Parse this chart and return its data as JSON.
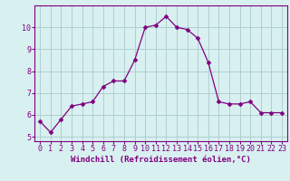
{
  "x": [
    0,
    1,
    2,
    3,
    4,
    5,
    6,
    7,
    8,
    9,
    10,
    11,
    12,
    13,
    14,
    15,
    16,
    17,
    18,
    19,
    20,
    21,
    22,
    23
  ],
  "y": [
    5.7,
    5.2,
    5.8,
    6.4,
    6.5,
    6.6,
    7.3,
    7.55,
    7.55,
    8.5,
    10.0,
    10.1,
    10.5,
    10.0,
    9.9,
    9.5,
    8.4,
    6.6,
    6.5,
    6.5,
    6.6,
    6.1,
    6.1,
    6.1
  ],
  "line_color": "#800080",
  "marker": "D",
  "marker_size": 2.5,
  "bg_color": "#d8f0f0",
  "grid_color": "#b0cece",
  "axis_color": "#800080",
  "xlabel": "Windchill (Refroidissement éolien,°C)",
  "ylim": [
    4.8,
    11.0
  ],
  "xlim": [
    -0.5,
    23.5
  ],
  "yticks": [
    5,
    6,
    7,
    8,
    9,
    10
  ],
  "xticks": [
    0,
    1,
    2,
    3,
    4,
    5,
    6,
    7,
    8,
    9,
    10,
    11,
    12,
    13,
    14,
    15,
    16,
    17,
    18,
    19,
    20,
    21,
    22,
    23
  ],
  "label_fontsize": 6.5,
  "tick_fontsize": 6.0
}
